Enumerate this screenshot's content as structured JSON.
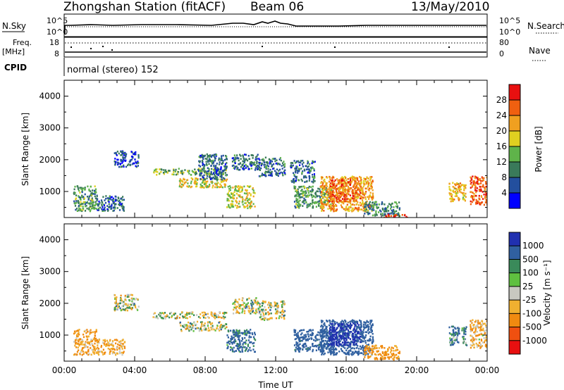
{
  "header": {
    "title": "Zhongshan Station (fitACF)",
    "beam": "Beam 06",
    "date": "13/May/2010"
  },
  "status_panels": {
    "nsky": {
      "label": "N.Sky",
      "left_ticks": [
        "10^5",
        "10^0"
      ],
      "right_ticks": [
        "10^5",
        "10^0"
      ],
      "right_label": "N.Search"
    },
    "freq": {
      "label_line1": "Freq.",
      "label_line2": "[MHz]",
      "left_ticks": [
        "18",
        "8"
      ],
      "right_ticks": [
        "80",
        "0"
      ],
      "right_label": "Nave"
    },
    "cpid": {
      "label": "CPID",
      "text": "normal (stereo) 152"
    }
  },
  "colors": {
    "power_scale": [
      "#0000ff",
      "#234f9e",
      "#3a7a5a",
      "#5fb34a",
      "#e0d020",
      "#f0a020",
      "#f06010",
      "#e81010"
    ],
    "velocity_scale": [
      "#e81010",
      "#f05010",
      "#f08a10",
      "#f0b030",
      "#c8c8c0",
      "#5fc040",
      "#3a8a5a",
      "#3060a0",
      "#2030b0"
    ]
  },
  "chart_data": [
    {
      "type": "heatmap",
      "panel": "power",
      "ylabel": "Slant Range [km]",
      "xlabel": "",
      "ylim": [
        180,
        4500
      ],
      "xlim": [
        0,
        24
      ],
      "y_ticks": [
        "1000",
        "2000",
        "3000",
        "4000"
      ],
      "colorbar": {
        "label": "Power [dB]",
        "ticks": [
          "4",
          "8",
          "12",
          "16",
          "20",
          "24",
          "28"
        ],
        "range": [
          0,
          32
        ]
      },
      "echo_regions": [
        {
          "x": [
            0.5,
            1.8
          ],
          "y": [
            400,
            1200
          ],
          "value": 12
        },
        {
          "x": [
            1.8,
            3.4
          ],
          "y": [
            400,
            900
          ],
          "value": 8
        },
        {
          "x": [
            2.8,
            4.2
          ],
          "y": [
            1800,
            2300
          ],
          "value": 6
        },
        {
          "x": [
            5.0,
            9.2
          ],
          "y": [
            1550,
            1750
          ],
          "value": 14
        },
        {
          "x": [
            6.5,
            9.2
          ],
          "y": [
            1150,
            1450
          ],
          "value": 18
        },
        {
          "x": [
            7.6,
            9.2
          ],
          "y": [
            1400,
            2200
          ],
          "value": 8
        },
        {
          "x": [
            9.2,
            10.8
          ],
          "y": [
            500,
            1200
          ],
          "value": 18
        },
        {
          "x": [
            9.5,
            11.0
          ],
          "y": [
            1700,
            2200
          ],
          "value": 8
        },
        {
          "x": [
            11.0,
            12.5
          ],
          "y": [
            1500,
            2100
          ],
          "value": 8
        },
        {
          "x": [
            12.8,
            14.2
          ],
          "y": [
            1300,
            2000
          ],
          "value": 8
        },
        {
          "x": [
            13.0,
            15.2
          ],
          "y": [
            500,
            1200
          ],
          "value": 12
        },
        {
          "x": [
            14.5,
            17.5
          ],
          "y": [
            400,
            1500
          ],
          "value": 22
        },
        {
          "x": [
            15.0,
            16.8
          ],
          "y": [
            700,
            1400
          ],
          "value": 26
        },
        {
          "x": [
            17.0,
            19.0
          ],
          "y": [
            250,
            700
          ],
          "value": 10
        },
        {
          "x": [
            18.0,
            19.5
          ],
          "y": [
            200,
            300
          ],
          "value": 28
        },
        {
          "x": [
            21.8,
            22.8
          ],
          "y": [
            700,
            1300
          ],
          "value": 20
        },
        {
          "x": [
            23.0,
            24.0
          ],
          "y": [
            600,
            1500
          ],
          "value": 26
        }
      ]
    },
    {
      "type": "heatmap",
      "panel": "velocity",
      "ylabel": "Slant Range [km]",
      "xlabel": "Time UT",
      "ylim": [
        180,
        4500
      ],
      "xlim": [
        0,
        24
      ],
      "y_ticks": [
        "1000",
        "2000",
        "3000",
        "4000"
      ],
      "x_ticks": [
        "00:00",
        "04:00",
        "08:00",
        "12:00",
        "16:00",
        "20:00",
        "00:00"
      ],
      "colorbar": {
        "label": "Velocity [m s⁻¹]",
        "ticks": [
          "1000",
          "500",
          "100",
          "25",
          "-25",
          "-100",
          "-500",
          "-1000"
        ]
      },
      "echo_regions": [
        {
          "x": [
            0.5,
            1.8
          ],
          "y": [
            400,
            1200
          ],
          "value": -100
        },
        {
          "x": [
            1.8,
            3.4
          ],
          "y": [
            400,
            900
          ],
          "value": -100
        },
        {
          "x": [
            2.8,
            4.2
          ],
          "y": [
            1800,
            2300
          ],
          "value": 0
        },
        {
          "x": [
            5.0,
            9.2
          ],
          "y": [
            1550,
            1750
          ],
          "value": 0
        },
        {
          "x": [
            6.5,
            9.2
          ],
          "y": [
            1150,
            1450
          ],
          "value": 0
        },
        {
          "x": [
            9.2,
            10.8
          ],
          "y": [
            500,
            1200
          ],
          "value": 150
        },
        {
          "x": [
            9.5,
            11.0
          ],
          "y": [
            1700,
            2200
          ],
          "value": 0
        },
        {
          "x": [
            11.0,
            12.5
          ],
          "y": [
            1500,
            2100
          ],
          "value": 0
        },
        {
          "x": [
            13.0,
            15.2
          ],
          "y": [
            500,
            1200
          ],
          "value": 200
        },
        {
          "x": [
            14.5,
            17.5
          ],
          "y": [
            400,
            1500
          ],
          "value": 300
        },
        {
          "x": [
            15.0,
            16.8
          ],
          "y": [
            700,
            1400
          ],
          "value": 600
        },
        {
          "x": [
            17.0,
            19.0
          ],
          "y": [
            250,
            700
          ],
          "value": -150
        },
        {
          "x": [
            21.8,
            22.8
          ],
          "y": [
            700,
            1300
          ],
          "value": 100
        },
        {
          "x": [
            23.0,
            24.0
          ],
          "y": [
            600,
            1500
          ],
          "value": -80
        }
      ]
    }
  ]
}
